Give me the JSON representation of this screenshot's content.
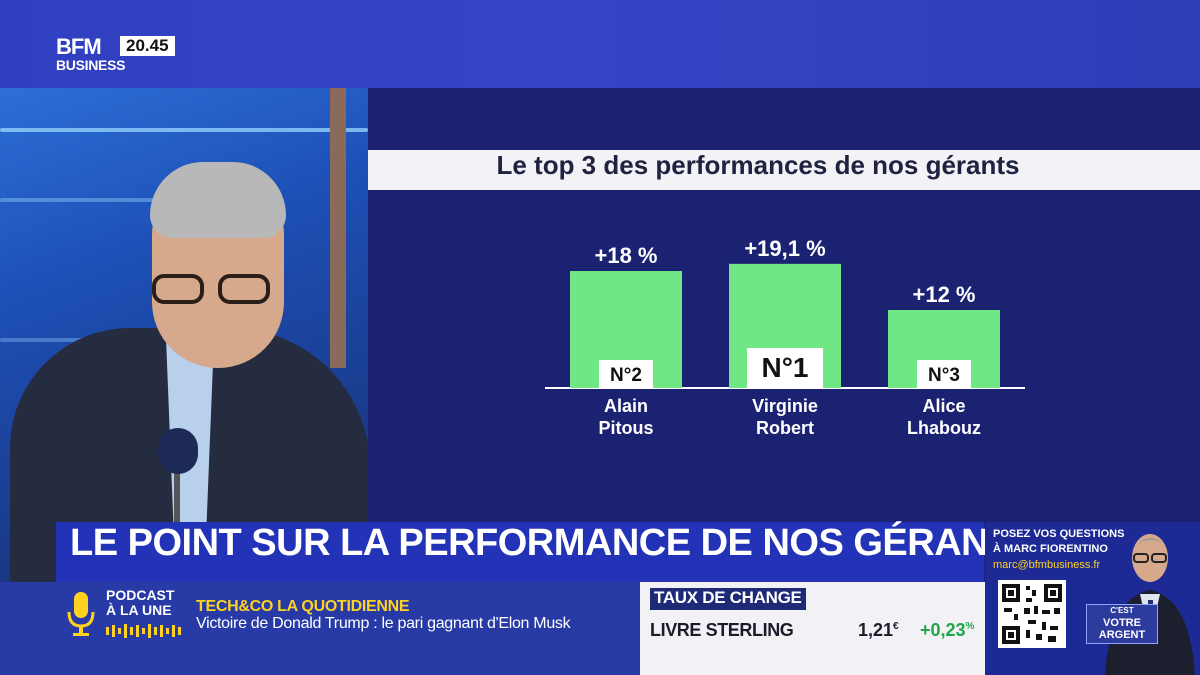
{
  "channel": {
    "logo_top": "BFM",
    "logo_bottom": "BUSINESS",
    "clock": "20.45"
  },
  "chart": {
    "title": "Le top 3 des performances de nos gérants"
  },
  "chart_data": {
    "type": "bar",
    "title": "Le top 3 des performances de nos gérants",
    "categories": [
      "Alain Pitous",
      "Virginie Robert",
      "Alice Lhabouz"
    ],
    "values": [
      18,
      19.1,
      12
    ],
    "value_labels": [
      "+18 %",
      "+19,1 %",
      "+12 %"
    ],
    "ranks": [
      "N°2",
      "N°1",
      "N°3"
    ],
    "names_line1": [
      "Alain",
      "Virginie",
      "Alice"
    ],
    "names_line2": [
      "Pitous",
      "Robert",
      "Lhabouz"
    ],
    "bar_color": "#6ee784",
    "ylim": [
      0,
      20
    ],
    "grid": false
  },
  "headline": "LE POINT SUR LA PERFORMANCE DE NOS GÉRANTS",
  "ticker": {
    "podcast_line1": "PODCAST",
    "podcast_line2": "À LA UNE",
    "show_title": "TECH&CO LA QUOTIDIENNE",
    "show_desc": "Victoire de Donald Trump : le pari gagnant d'Elon Musk"
  },
  "fx": {
    "label": "TAUX DE CHANGE",
    "name": "LIVRE STERLING",
    "value": "1,21",
    "value_unit": "€",
    "change": "+0,23",
    "change_unit": "%"
  },
  "promo": {
    "line1": "POSEZ VOS QUESTIONS",
    "line2": "À MARC FIORENTINO",
    "email": "marc@bfmbusiness.fr",
    "logo_line1": "C'EST",
    "logo_line2": "VOTRE",
    "logo_line3": "ARGENT"
  },
  "colors": {
    "accent_blue": "#2233b8",
    "bar_green": "#6ee784",
    "ticker_yellow": "#ffd21f",
    "positive_green": "#1fa64a"
  }
}
